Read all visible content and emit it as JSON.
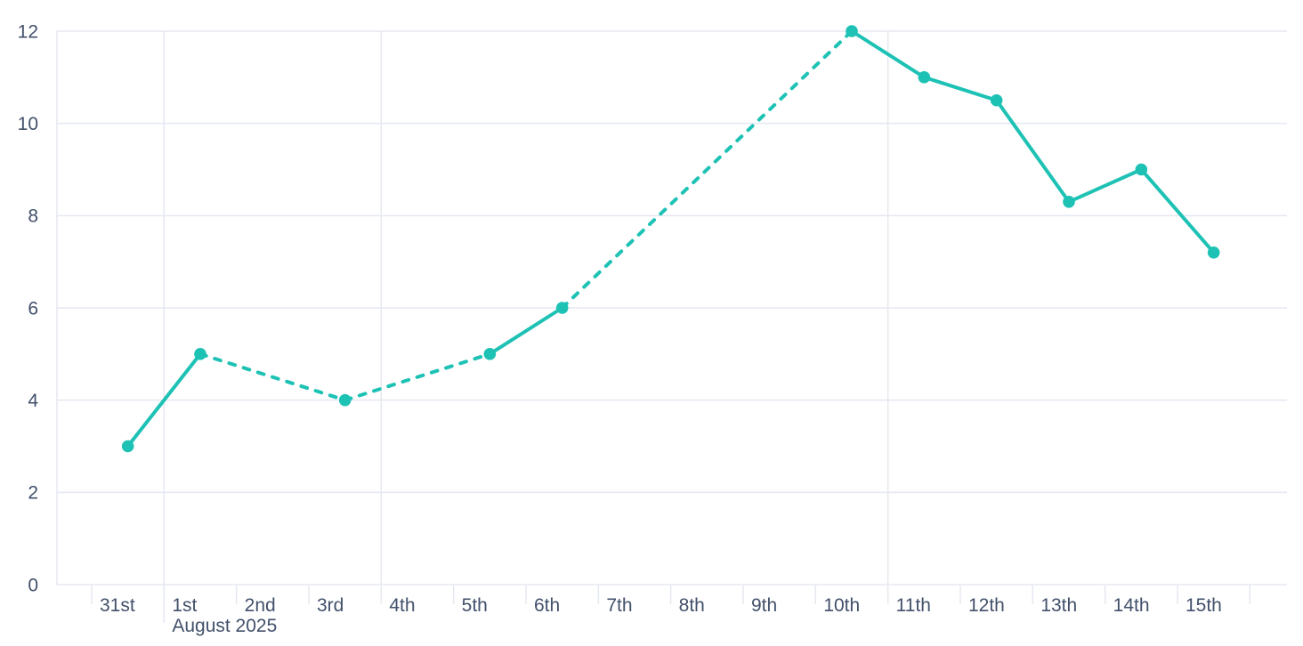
{
  "chart_data": {
    "type": "line",
    "title": "",
    "xlabel": "",
    "ylabel": "",
    "categories": [
      "31st",
      "1st",
      "2nd",
      "3rd",
      "4th",
      "5th",
      "6th",
      "7th",
      "8th",
      "9th",
      "10th",
      "11th",
      "12th",
      "13th",
      "14th",
      "15th"
    ],
    "x_secondary_label": {
      "under": "1st",
      "text": "August 2025"
    },
    "series": [
      {
        "name": "series-1",
        "color": "#1EC2B5",
        "values": [
          3,
          5,
          null,
          4,
          null,
          5,
          6,
          null,
          null,
          null,
          12,
          11,
          10.5,
          8.3,
          9,
          7.2
        ]
      }
    ],
    "gap_style": "dashed",
    "ylim": [
      0,
      12
    ],
    "y_ticks": [
      0,
      2,
      4,
      6,
      8,
      10,
      12
    ],
    "vertical_gridlines_at_categories": [
      "1st",
      "4th",
      "11th"
    ],
    "grid": true,
    "legend": false
  },
  "colors": {
    "line": "#1EC2B5",
    "grid": "#E5E8F1",
    "axis_text": "#42506B",
    "background": "#FFFFFF"
  }
}
